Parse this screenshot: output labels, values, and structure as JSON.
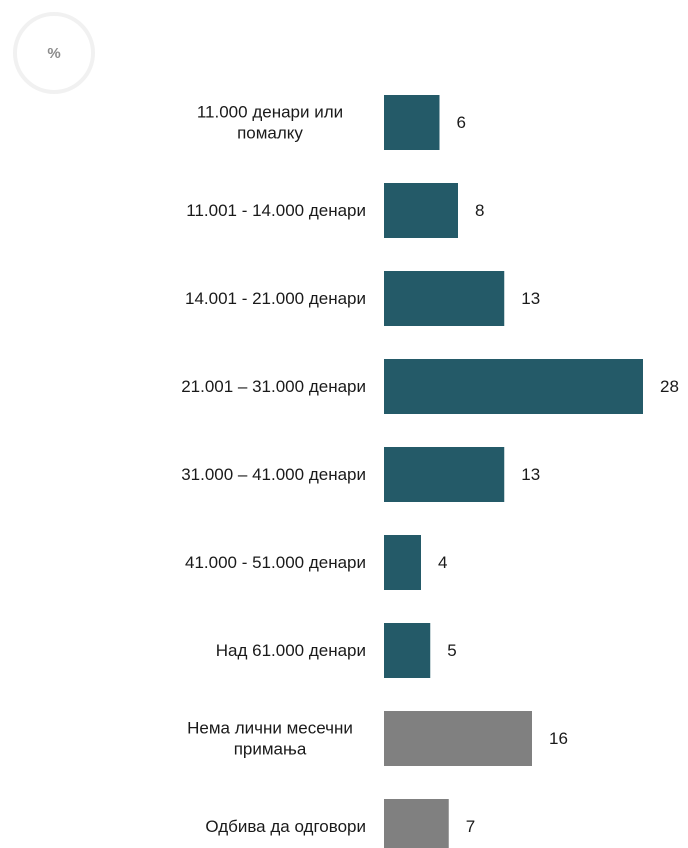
{
  "unit_badge": "%",
  "chart_data": {
    "type": "bar",
    "orientation": "horizontal",
    "categories": [
      [
        "11.000 денари или",
        "помалку"
      ],
      [
        "11.001 - 14.000 денари"
      ],
      [
        "14.001 - 21.000 денари"
      ],
      [
        "21.001 – 31.000 денари"
      ],
      [
        "31.000 – 41.000 денари"
      ],
      [
        "41.000 - 51.000 денари"
      ],
      [
        "Над 61.000 денари"
      ],
      [
        "Нема лични месечни",
        "примања"
      ],
      [
        "Одбива да одговори"
      ]
    ],
    "values": [
      6,
      8,
      13,
      28,
      13,
      4,
      5,
      16,
      7
    ],
    "value_labels": [
      "6",
      "8",
      "13",
      "28",
      "13",
      "4",
      "5",
      "16",
      "7"
    ],
    "colors": [
      "#245a68",
      "#245a68",
      "#245a68",
      "#245a68",
      "#245a68",
      "#245a68",
      "#245a68",
      "#808080",
      "#808080"
    ],
    "xlim": [
      0,
      28
    ],
    "grid": false,
    "legend": "none"
  }
}
